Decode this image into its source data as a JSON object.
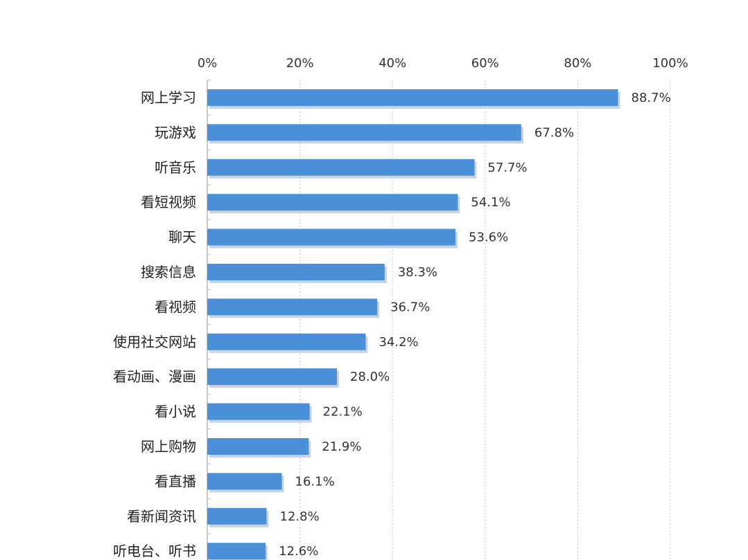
{
  "chart_data": {
    "type": "bar",
    "orientation": "horizontal",
    "categories": [
      "网上学习",
      "玩游戏",
      "听音乐",
      "看短视频",
      "聊天",
      "搜索信息",
      "看视频",
      "使用社交网站",
      "看动画、漫画",
      "看小说",
      "网上购物",
      "看直播",
      "看新闻资讯",
      "听电台、听书"
    ],
    "values": [
      88.7,
      67.8,
      57.7,
      54.1,
      53.6,
      38.3,
      36.7,
      34.2,
      28.0,
      22.1,
      21.9,
      16.1,
      12.8,
      12.6
    ],
    "value_labels": [
      "88.7%",
      "67.8%",
      "57.7%",
      "54.1%",
      "53.6%",
      "38.3%",
      "36.7%",
      "34.2%",
      "28.0%",
      "22.1%",
      "21.9%",
      "16.1%",
      "12.8%",
      "12.6%"
    ],
    "x_ticks": [
      0,
      20,
      40,
      60,
      80,
      100
    ],
    "x_tick_labels": [
      "0%",
      "20%",
      "40%",
      "60%",
      "80%",
      "100%"
    ],
    "xlim": [
      0,
      100
    ],
    "x_axis_position": "top",
    "grid": true,
    "legend": "none",
    "bar_color": "#4A90D9",
    "bar_shadow_color": "#C8D3DD",
    "grid_color": "#E7B9B9",
    "title": "",
    "xlabel": "",
    "ylabel": ""
  }
}
